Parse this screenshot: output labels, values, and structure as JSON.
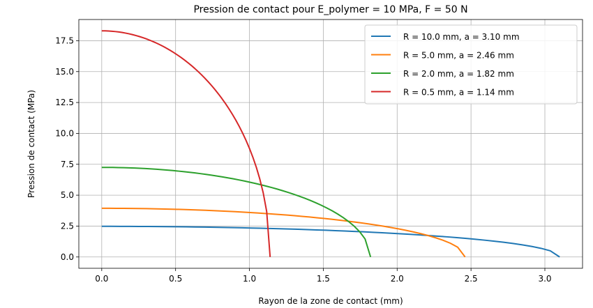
{
  "chart_data": {
    "type": "line",
    "title": "Pression de contact pour E_polymer = 10 MPa, F = 50 N",
    "xlabel": "Rayon de la zone de contact (mm)",
    "ylabel": "Pression de contact (MPa)",
    "xlim": [
      -0.155,
      3.255
    ],
    "ylim": [
      -0.915,
      19.215
    ],
    "xticks": [
      0.0,
      0.5,
      1.0,
      1.5,
      2.0,
      2.5,
      3.0
    ],
    "xtick_labels": [
      "0.0",
      "0.5",
      "1.0",
      "1.5",
      "2.0",
      "2.5",
      "3.0"
    ],
    "yticks": [
      0.0,
      2.5,
      5.0,
      7.5,
      10.0,
      12.5,
      15.0,
      17.5
    ],
    "ytick_labels": [
      "0.0",
      "2.5",
      "5.0",
      "7.5",
      "10.0",
      "12.5",
      "15.0",
      "17.5"
    ],
    "grid": true,
    "legend_position": "top-right",
    "series": [
      {
        "name": "R = 10.0 mm, a = 3.10 mm",
        "color": "#1f77b4",
        "a": 3.1,
        "p0": 2.48
      },
      {
        "name": "R = 5.0 mm, a = 2.46 mm",
        "color": "#ff7f0e",
        "a": 2.46,
        "p0": 3.94
      },
      {
        "name": "R = 2.0 mm, a = 1.82 mm",
        "color": "#2ca02c",
        "a": 1.82,
        "p0": 7.25
      },
      {
        "name": "R = 0.5 mm, a = 1.14 mm",
        "color": "#d62728",
        "a": 1.14,
        "p0": 18.3
      }
    ]
  }
}
